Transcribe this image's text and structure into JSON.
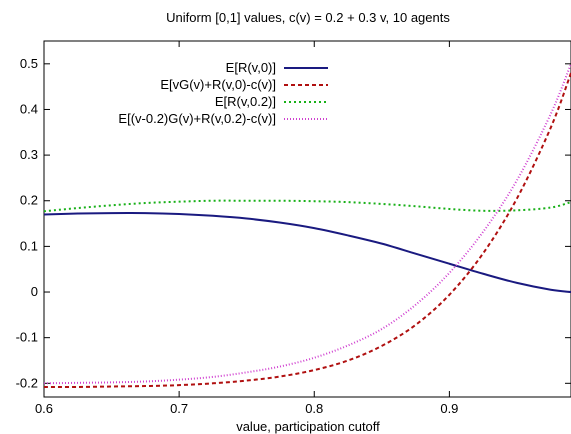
{
  "chart_data": {
    "type": "line",
    "title": "Uniform [0,1] values, c(v) = 0.2 + 0.3 v, 10 agents",
    "xlabel": "value, participation cutoff",
    "ylabel": "",
    "xlim": [
      0.6,
      0.99
    ],
    "ylim": [
      -0.23,
      0.55
    ],
    "xticks": [
      "0.6",
      "0.7",
      "0.8",
      "0.9"
    ],
    "yticks": [
      "-0.2",
      "-0.1",
      "0",
      "0.1",
      "0.2",
      "0.3",
      "0.4",
      "0.5"
    ],
    "grid": false,
    "legend_position": "top-center",
    "series": [
      {
        "name": "E[R(v,0)]",
        "color": "#1a1a80",
        "dash": "solid",
        "x": [
          0.6,
          0.625,
          0.65,
          0.675,
          0.7,
          0.725,
          0.75,
          0.775,
          0.8,
          0.825,
          0.85,
          0.875,
          0.9,
          0.925,
          0.95,
          0.975,
          0.99
        ],
        "y": [
          0.17,
          0.172,
          0.173,
          0.173,
          0.171,
          0.167,
          0.161,
          0.152,
          0.14,
          0.124,
          0.106,
          0.084,
          0.062,
          0.04,
          0.02,
          0.005,
          0.0
        ]
      },
      {
        "name": "E[vG(v)+R(v,0)-c(v)]",
        "color": "#b01010",
        "dash": "4,3",
        "x": [
          0.6,
          0.625,
          0.65,
          0.675,
          0.7,
          0.725,
          0.75,
          0.775,
          0.8,
          0.825,
          0.85,
          0.875,
          0.9,
          0.925,
          0.95,
          0.975,
          0.99
        ],
        "y": [
          -0.208,
          -0.208,
          -0.207,
          -0.206,
          -0.204,
          -0.2,
          -0.194,
          -0.185,
          -0.171,
          -0.15,
          -0.118,
          -0.072,
          -0.006,
          0.085,
          0.205,
          0.36,
          0.48
        ]
      },
      {
        "name": "E[R(v,0.2)]",
        "color": "#18b018",
        "dash": "2,3",
        "x": [
          0.6,
          0.625,
          0.65,
          0.675,
          0.7,
          0.725,
          0.75,
          0.775,
          0.8,
          0.825,
          0.85,
          0.875,
          0.9,
          0.925,
          0.95,
          0.975,
          0.99
        ],
        "y": [
          0.177,
          0.184,
          0.19,
          0.195,
          0.198,
          0.2,
          0.2,
          0.2,
          0.199,
          0.197,
          0.193,
          0.188,
          0.182,
          0.178,
          0.179,
          0.185,
          0.197
        ]
      },
      {
        "name": "E[(v-0.2)G(v)+R(v,0.2)-c(v)]",
        "color": "#d040d0",
        "dash": "1,2",
        "x": [
          0.6,
          0.625,
          0.65,
          0.675,
          0.7,
          0.725,
          0.75,
          0.775,
          0.8,
          0.825,
          0.85,
          0.875,
          0.9,
          0.925,
          0.95,
          0.975,
          0.99
        ],
        "y": [
          -0.2,
          -0.199,
          -0.198,
          -0.196,
          -0.192,
          -0.186,
          -0.176,
          -0.163,
          -0.144,
          -0.117,
          -0.081,
          -0.028,
          0.042,
          0.132,
          0.245,
          0.39,
          0.5
        ]
      }
    ]
  }
}
